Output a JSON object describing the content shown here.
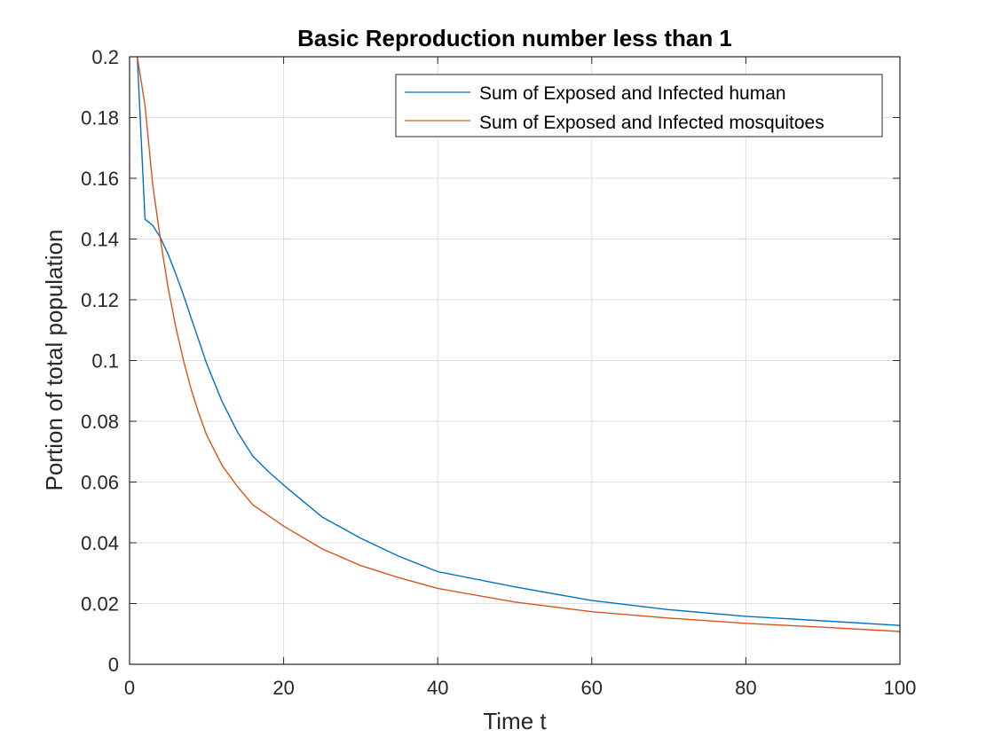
{
  "chart_data": {
    "type": "line",
    "title": "Basic Reproduction number less than 1",
    "xlabel": "Time t",
    "ylabel": "Portion of total population",
    "xlim": [
      0,
      100
    ],
    "ylim": [
      0,
      0.2
    ],
    "xticks": [
      0,
      20,
      40,
      60,
      80,
      100
    ],
    "xtick_labels": [
      "0",
      "20",
      "40",
      "60",
      "80",
      "100"
    ],
    "yticks": [
      0,
      0.02,
      0.04,
      0.06,
      0.08,
      0.1,
      0.12,
      0.14,
      0.16,
      0.18,
      0.2
    ],
    "ytick_labels": [
      "0",
      "0.02",
      "0.04",
      "0.06",
      "0.08",
      "0.1",
      "0.12",
      "0.14",
      "0.16",
      "0.18",
      "0.2"
    ],
    "grid": true,
    "legend_position": "top-right",
    "series": [
      {
        "name": "Sum of Exposed and Infected human",
        "color": "#0072BD",
        "x": [
          1,
          2,
          3,
          4,
          5,
          6,
          7,
          8,
          9,
          10,
          12,
          14,
          16,
          18,
          20,
          25,
          30,
          35,
          40,
          50,
          60,
          70,
          80,
          90,
          100
        ],
        "y": [
          0.2,
          0.1465,
          0.1445,
          0.1405,
          0.135,
          0.1285,
          0.1215,
          0.114,
          0.1065,
          0.099,
          0.0865,
          0.0765,
          0.0685,
          0.0635,
          0.059,
          0.0485,
          0.0415,
          0.0355,
          0.0305,
          0.0255,
          0.021,
          0.018,
          0.0158,
          0.0143,
          0.0128
        ]
      },
      {
        "name": "Sum of Exposed and Infected mosquitoes",
        "color": "#D95319",
        "x": [
          1,
          2,
          3,
          4,
          5,
          6,
          7,
          8,
          9,
          10,
          12,
          14,
          16,
          18,
          20,
          25,
          30,
          35,
          40,
          50,
          60,
          70,
          80,
          90,
          100
        ],
        "y": [
          0.2,
          0.184,
          0.158,
          0.14,
          0.124,
          0.111,
          0.1,
          0.0905,
          0.0825,
          0.0755,
          0.0655,
          0.0585,
          0.0525,
          0.049,
          0.0455,
          0.038,
          0.0325,
          0.0285,
          0.025,
          0.0205,
          0.0173,
          0.0152,
          0.0135,
          0.0122,
          0.0108
        ]
      }
    ]
  }
}
